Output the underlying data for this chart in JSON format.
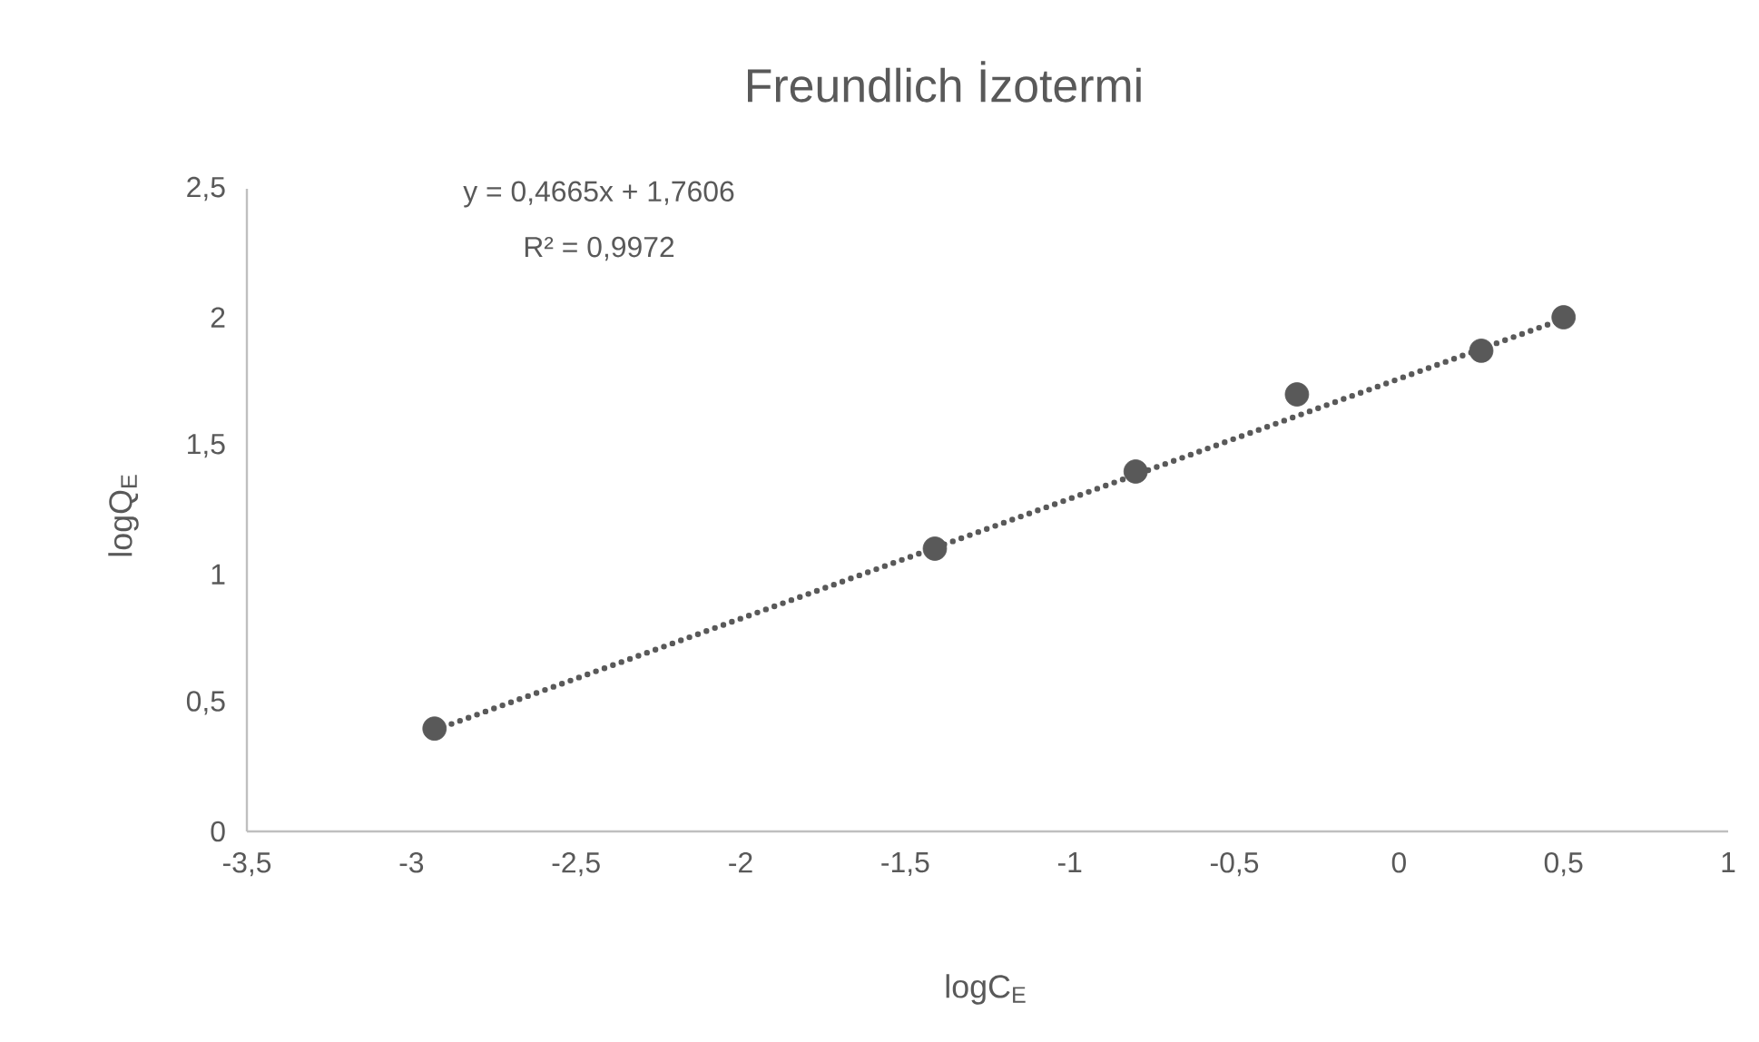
{
  "chart_data": {
    "type": "scatter",
    "title": "Freundlich İzotermi",
    "xlabel": "logC$_{E}$",
    "ylabel": "logQ$_{E}$",
    "annotations": [
      "y = 0,4665x + 1,7606",
      "R² = 0,9972"
    ],
    "series": [
      {
        "type": "scatter",
        "color": "#595959",
        "marker": "circle",
        "x": [
          -2.93,
          -1.41,
          -0.8,
          -0.31,
          0.25,
          0.5
        ],
        "values": [
          0.4,
          1.1,
          1.4,
          1.7,
          1.87,
          2.0
        ]
      },
      {
        "type": "line",
        "color": "#595959",
        "marker": "none",
        "line_style": "dotted",
        "x": [
          -2.93,
          0.5
        ],
        "values": [
          0.394,
          1.994
        ]
      }
    ],
    "xlim": [
      -3.5,
      1
    ],
    "xticks": [
      {
        "value": -3.5,
        "label": "-3,5"
      },
      -3,
      {
        "value": -2.5,
        "label": "-2,5"
      },
      -2,
      {
        "value": -1.5,
        "label": "-1,5"
      },
      -1,
      {
        "value": -0.5,
        "label": "-0,5"
      },
      0,
      {
        "value": 0.5,
        "label": "0,5"
      },
      1
    ],
    "ylim": [
      0,
      2.5
    ],
    "yticks": [
      0,
      {
        "value": 0.5,
        "label": "0,5"
      },
      1,
      {
        "value": 1.5,
        "label": "1,5"
      },
      2,
      {
        "value": 2.5,
        "label": "2,5"
      }
    ],
    "grid": false
  }
}
